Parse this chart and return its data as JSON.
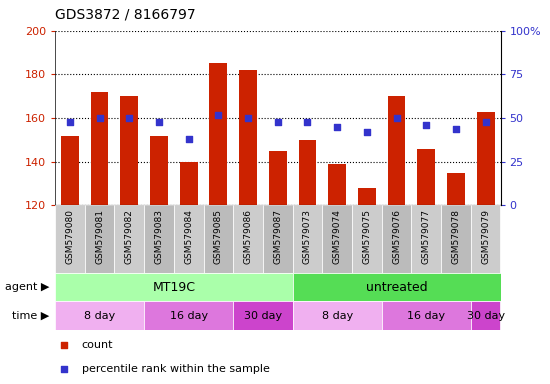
{
  "title": "GDS3872 / 8166797",
  "samples": [
    "GSM579080",
    "GSM579081",
    "GSM579082",
    "GSM579083",
    "GSM579084",
    "GSM579085",
    "GSM579086",
    "GSM579087",
    "GSM579073",
    "GSM579074",
    "GSM579075",
    "GSM579076",
    "GSM579077",
    "GSM579078",
    "GSM579079"
  ],
  "counts": [
    152,
    172,
    170,
    152,
    140,
    185,
    182,
    145,
    150,
    139,
    128,
    170,
    146,
    135,
    163
  ],
  "percentiles": [
    48,
    50,
    50,
    48,
    38,
    52,
    50,
    48,
    48,
    45,
    42,
    50,
    46,
    44,
    48
  ],
  "ymin": 120,
  "ymax": 200,
  "yticks": [
    120,
    140,
    160,
    180,
    200
  ],
  "y2min": 0,
  "y2max": 100,
  "y2ticks": [
    0,
    25,
    50,
    75,
    100
  ],
  "y2ticklabels": [
    "0",
    "25",
    "50",
    "75",
    "100%"
  ],
  "bar_color": "#cc2200",
  "dot_color": "#3333cc",
  "grid_color": "#000000",
  "bg_color": "#ffffff",
  "tick_label_color_left": "#cc2200",
  "tick_label_color_right": "#3333cc",
  "agent_groups": [
    {
      "label": "MT19C",
      "start": 0,
      "end": 8,
      "color": "#aaffaa"
    },
    {
      "label": "untreated",
      "start": 8,
      "end": 15,
      "color": "#55dd55"
    }
  ],
  "time_groups": [
    {
      "label": "8 day",
      "start": 0,
      "end": 3,
      "color": "#f0b0f0"
    },
    {
      "label": "16 day",
      "start": 3,
      "end": 6,
      "color": "#dd77dd"
    },
    {
      "label": "30 day",
      "start": 6,
      "end": 8,
      "color": "#cc44cc"
    },
    {
      "label": "8 day",
      "start": 8,
      "end": 11,
      "color": "#f0b0f0"
    },
    {
      "label": "16 day",
      "start": 11,
      "end": 14,
      "color": "#dd77dd"
    },
    {
      "label": "30 day",
      "start": 14,
      "end": 15,
      "color": "#cc44cc"
    }
  ],
  "legend_items": [
    {
      "label": "count",
      "color": "#cc2200"
    },
    {
      "label": "percentile rank within the sample",
      "color": "#3333cc"
    }
  ]
}
